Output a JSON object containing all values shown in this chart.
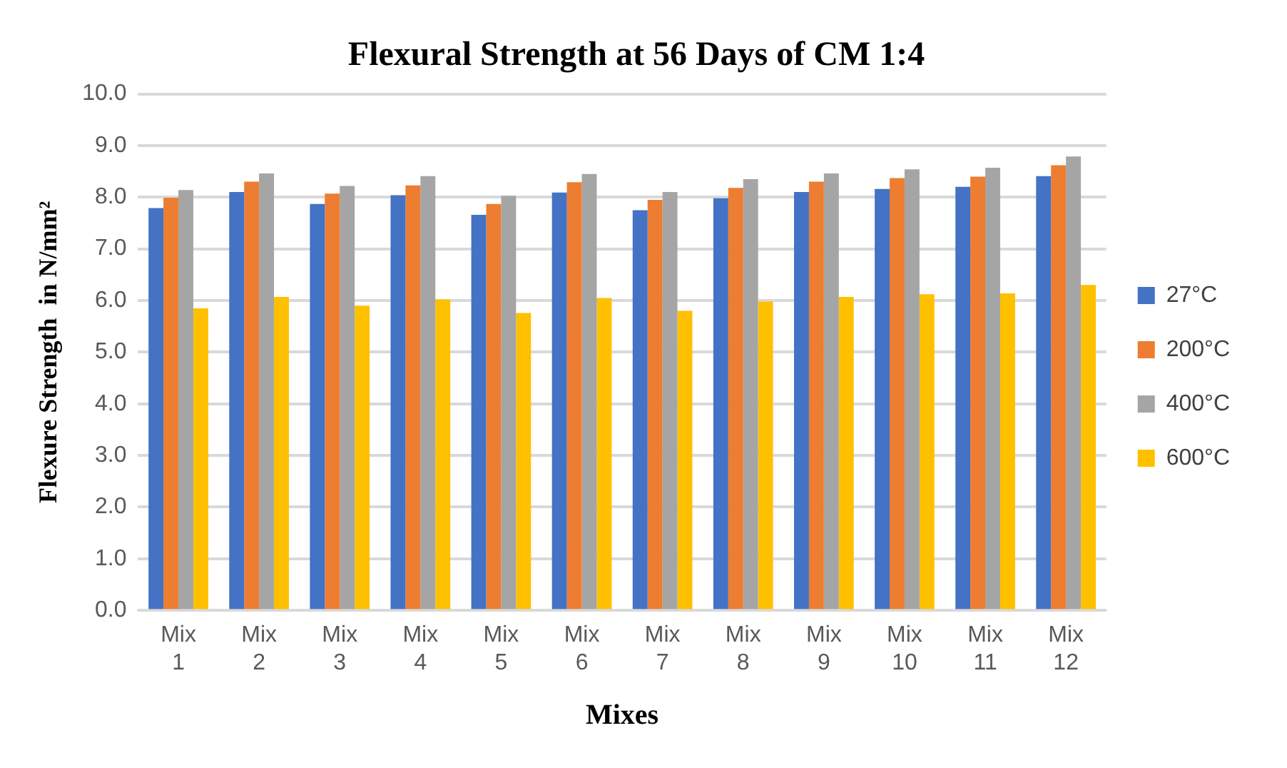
{
  "chart_data": {
    "type": "bar",
    "title": "Flexural Strength at 56 Days of CM 1:4",
    "xlabel": "Mixes",
    "ylabel": "Flexure Strength  in N/mm²",
    "categories": [
      "Mix 1",
      "Mix 2",
      "Mix 3",
      "Mix 4",
      "Mix 5",
      "Mix 6",
      "Mix 7",
      "Mix 8",
      "Mix 9",
      "Mix 10",
      "Mix 11",
      "Mix 12"
    ],
    "series": [
      {
        "name": "27°C",
        "color": "#4472c4",
        "values": [
          7.79,
          8.1,
          7.87,
          8.04,
          7.66,
          8.09,
          7.75,
          7.98,
          8.1,
          8.16,
          8.2,
          8.41
        ]
      },
      {
        "name": "200°C",
        "color": "#ed7d31",
        "values": [
          7.99,
          8.3,
          8.07,
          8.23,
          7.87,
          8.29,
          7.95,
          8.18,
          8.3,
          8.37,
          8.4,
          8.62
        ]
      },
      {
        "name": "400°C",
        "color": "#a5a5a5",
        "values": [
          8.14,
          8.46,
          8.22,
          8.41,
          8.03,
          8.45,
          8.1,
          8.35,
          8.46,
          8.54,
          8.57,
          8.79
        ]
      },
      {
        "name": "600°C",
        "color": "#ffc000",
        "values": [
          5.85,
          6.07,
          5.9,
          6.02,
          5.76,
          6.05,
          5.8,
          5.98,
          6.07,
          6.12,
          6.14,
          6.3
        ]
      }
    ],
    "ylim": [
      0,
      10
    ],
    "yticks": [
      {
        "value": 0,
        "label": "0.0"
      },
      {
        "value": 1,
        "label": "1.0"
      },
      {
        "value": 2,
        "label": "2.0"
      },
      {
        "value": 3,
        "label": "3.0"
      },
      {
        "value": 4,
        "label": "4.0"
      },
      {
        "value": 5,
        "label": "5.0"
      },
      {
        "value": 6,
        "label": "6.0"
      },
      {
        "value": 7,
        "label": "7.0"
      },
      {
        "value": 8,
        "label": "8.0"
      },
      {
        "value": 9,
        "label": "9.0"
      },
      {
        "value": 10,
        "label": "10.0"
      }
    ],
    "grid": "y",
    "legend": "right"
  }
}
